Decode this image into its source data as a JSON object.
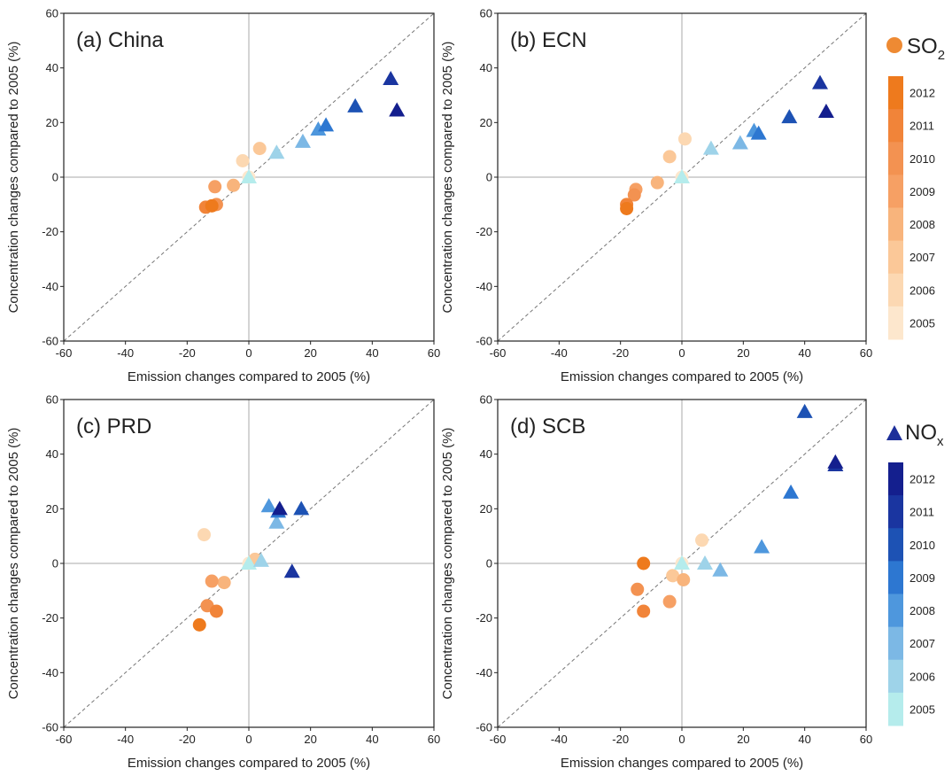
{
  "figure": {
    "title": ""
  },
  "chart_data": [
    {
      "type": "scatter",
      "panel": "a",
      "title": "(a) China",
      "xlabel": "Emission changes compared to 2005 (%)",
      "ylabel": "Concentration changes compared to 2005 (%)",
      "xlim": [
        -60,
        60
      ],
      "ylim": [
        -60,
        60
      ],
      "xticks": [
        "-60",
        "-40",
        "-20",
        "0",
        "20",
        "40",
        "60"
      ],
      "yticks": [
        "-60",
        "-40",
        "-20",
        "0",
        "20",
        "40",
        "60"
      ],
      "reference_line": "1:1 dashed",
      "series": [
        {
          "name": "SO2",
          "marker": "circle",
          "years": [
            2005,
            2006,
            2007,
            2008,
            2009,
            2010,
            2011,
            2012
          ],
          "x": [
            0,
            -2,
            3.5,
            -5,
            -11,
            -10.5,
            -14,
            -12
          ],
          "y": [
            0,
            6,
            10.5,
            -3,
            -3.5,
            -10,
            -11,
            -10.5
          ]
        },
        {
          "name": "NOx",
          "marker": "triangle",
          "years": [
            2005,
            2006,
            2007,
            2008,
            2009,
            2010,
            2011,
            2012
          ],
          "x": [
            0,
            9,
            17.5,
            22.5,
            25,
            34.5,
            46,
            48
          ],
          "y": [
            0,
            9,
            13,
            17.5,
            19,
            26,
            36,
            24.5
          ]
        }
      ]
    },
    {
      "type": "scatter",
      "panel": "b",
      "title": "(b) ECN",
      "xlabel": "Emission changes compared to 2005 (%)",
      "ylabel": "Concentration changes compared to 2005 (%)",
      "xlim": [
        -60,
        60
      ],
      "ylim": [
        -60,
        60
      ],
      "xticks": [
        "-60",
        "-40",
        "-20",
        "0",
        "20",
        "40",
        "60"
      ],
      "yticks": [
        "-60",
        "-40",
        "-20",
        "0",
        "20",
        "40",
        "60"
      ],
      "reference_line": "1:1 dashed",
      "series": [
        {
          "name": "SO2",
          "marker": "circle",
          "years": [
            2005,
            2006,
            2007,
            2008,
            2009,
            2010,
            2011,
            2012
          ],
          "x": [
            0,
            1,
            -4,
            -8,
            -15,
            -15.5,
            -18,
            -18
          ],
          "y": [
            0,
            14,
            7.5,
            -2,
            -4.5,
            -6.5,
            -10,
            -11.5
          ]
        },
        {
          "name": "NOx",
          "marker": "triangle",
          "years": [
            2005,
            2006,
            2007,
            2008,
            2009,
            2010,
            2011,
            2012
          ],
          "x": [
            0,
            9.5,
            19,
            23.5,
            25,
            35,
            45,
            47
          ],
          "y": [
            0,
            10.5,
            12.5,
            17,
            16,
            22,
            34.5,
            24
          ]
        }
      ]
    },
    {
      "type": "scatter",
      "panel": "c",
      "title": "(c) PRD",
      "xlabel": "Emission changes compared to 2005 (%)",
      "ylabel": "Concentration changes compared to 2005 (%)",
      "xlim": [
        -60,
        60
      ],
      "ylim": [
        -60,
        60
      ],
      "xticks": [
        "-60",
        "-40",
        "-20",
        "0",
        "20",
        "40",
        "60"
      ],
      "yticks": [
        "-60",
        "-40",
        "-20",
        "0",
        "20",
        "40",
        "60"
      ],
      "reference_line": "1:1 dashed",
      "series": [
        {
          "name": "SO2",
          "marker": "circle",
          "years": [
            2005,
            2006,
            2007,
            2008,
            2009,
            2010,
            2011,
            2012
          ],
          "x": [
            0,
            -14.5,
            2,
            -8,
            -12,
            -13.5,
            -10.5,
            -16
          ],
          "y": [
            0,
            10.5,
            1.5,
            -7,
            -6.5,
            -15.5,
            -17.5,
            -22.5
          ]
        },
        {
          "name": "NOx",
          "marker": "triangle",
          "years": [
            2005,
            2006,
            2007,
            2008,
            2009,
            2010,
            2011,
            2012
          ],
          "x": [
            0,
            4,
            9,
            6.5,
            9.5,
            17,
            14,
            10
          ],
          "y": [
            0,
            1,
            15,
            21,
            19,
            20,
            -3,
            20
          ]
        }
      ]
    },
    {
      "type": "scatter",
      "panel": "d",
      "title": "(d) SCB",
      "xlabel": "Emission changes compared to 2005 (%)",
      "ylabel": "Concentration changes compared to 2005 (%)",
      "xlim": [
        -60,
        60
      ],
      "ylim": [
        -60,
        60
      ],
      "xticks": [
        "-60",
        "-40",
        "-20",
        "0",
        "20",
        "40",
        "60"
      ],
      "yticks": [
        "-60",
        "-40",
        "-20",
        "0",
        "20",
        "40",
        "60"
      ],
      "reference_line": "1:1 dashed",
      "series": [
        {
          "name": "SO2",
          "marker": "circle",
          "years": [
            2005,
            2006,
            2007,
            2008,
            2009,
            2010,
            2011,
            2012
          ],
          "x": [
            0,
            6.5,
            -3,
            0.5,
            -4,
            -14.5,
            -12.5,
            -12.5
          ],
          "y": [
            0,
            8.5,
            -4.5,
            -6,
            -14,
            -9.5,
            -17.5,
            0
          ]
        },
        {
          "name": "NOx",
          "marker": "triangle",
          "years": [
            2005,
            2006,
            2007,
            2008,
            2009,
            2010,
            2011,
            2012
          ],
          "x": [
            0,
            7.5,
            12.5,
            26,
            35.5,
            40,
            50,
            50
          ],
          "y": [
            0,
            0,
            -2.5,
            6,
            26,
            55.5,
            36,
            37
          ]
        }
      ]
    }
  ],
  "legend": {
    "so2": {
      "label": "SO",
      "subscript": "2",
      "marker": "circle",
      "sample_color": "#ee8a33"
    },
    "nox": {
      "label": "NO",
      "subscript": "x",
      "marker": "triangle",
      "sample_color": "#1d2f9a"
    },
    "years": [
      "2005",
      "2006",
      "2007",
      "2008",
      "2009",
      "2010",
      "2011",
      "2012"
    ],
    "so2_colors": [
      "#fde7cd",
      "#fcd8b2",
      "#fbc898",
      "#f8b47c",
      "#f6a064",
      "#f39251",
      "#f18439",
      "#ee7a1d"
    ],
    "nox_colors": [
      "#b5ecec",
      "#9ed3e9",
      "#7cb8e5",
      "#4e97dd",
      "#2d77d1",
      "#1d52b4",
      "#1a35a0",
      "#141f8e"
    ]
  }
}
